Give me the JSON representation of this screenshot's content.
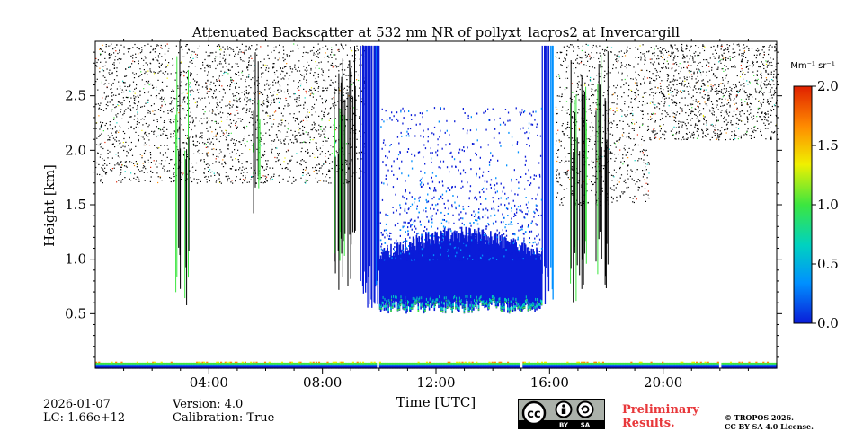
{
  "chart_data": {
    "type": "heatmap",
    "title": "Attenuated Backscatter at 532 nm NR of pollyxt_lacros2 at Invercargill",
    "xlabel": "Time [UTC]",
    "ylabel": "Height [km]",
    "xlim_hours": [
      0,
      24
    ],
    "ylim_km": [
      0,
      3.0
    ],
    "x_ticks": [
      {
        "hour": 4,
        "label": "04:00"
      },
      {
        "hour": 8,
        "label": "08:00"
      },
      {
        "hour": 12,
        "label": "12:00"
      },
      {
        "hour": 16,
        "label": "16:00"
      },
      {
        "hour": 20,
        "label": "20:00"
      }
    ],
    "y_ticks": [
      {
        "value": 0.5,
        "label": "0.5"
      },
      {
        "value": 1.0,
        "label": "1.0"
      },
      {
        "value": 1.5,
        "label": "1.5"
      },
      {
        "value": 2.0,
        "label": "2.0"
      },
      {
        "value": 2.5,
        "label": "2.5"
      }
    ],
    "colorbar": {
      "unit_label": "Mm⁻¹ sr⁻¹",
      "range": [
        0.0,
        2.0
      ],
      "ticks": [
        {
          "value": 0.0,
          "label": "0.0"
        },
        {
          "value": 0.5,
          "label": "0.5"
        },
        {
          "value": 1.0,
          "label": "1.0"
        },
        {
          "value": 1.5,
          "label": "1.5"
        },
        {
          "value": 2.0,
          "label": "2.0"
        }
      ],
      "colors": [
        "#0a1cd8",
        "#0090ff",
        "#00d2c0",
        "#3ce640",
        "#f0f000",
        "#ff8c00",
        "#e02000"
      ]
    }
  },
  "footer": {
    "date": "2026-01-07",
    "lc": "LC: 1.66e+12",
    "version": "Version: 4.0",
    "calibration": "Calibration: True",
    "license_badge": {
      "cc": "cc",
      "by": "BY",
      "sa": "SA"
    },
    "preliminary_line1": "Preliminary",
    "preliminary_line2": "Results.",
    "copyright_line1": "© TROPOS 2026.",
    "copyright_line2": "CC BY SA 4.0 License."
  }
}
